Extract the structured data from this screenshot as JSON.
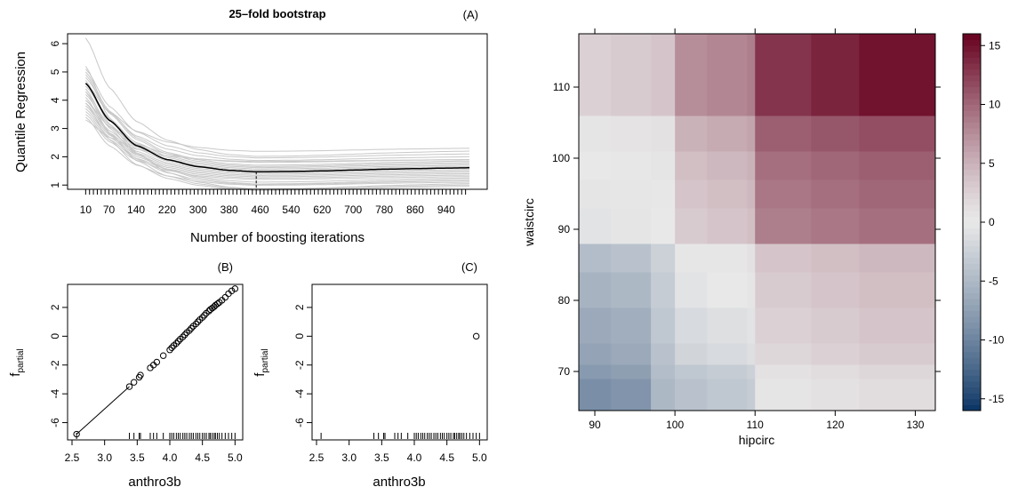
{
  "chart_data": [
    {
      "panel": "A",
      "type": "line",
      "panel_label": "(A)",
      "title": "25–fold bootstrap",
      "xlabel": "Number of boosting iterations",
      "ylabel": "Quantile Regression",
      "xlim": [
        0,
        1000
      ],
      "ylim": [
        0.85,
        6.35
      ],
      "x_tick_labels": [
        "10",
        "70",
        "140",
        "220",
        "300",
        "380",
        "460",
        "540",
        "620",
        "700",
        "780",
        "860",
        "940"
      ],
      "y_tick_labels": [
        "1",
        "2",
        "3",
        "4",
        "5",
        "6"
      ],
      "mean_curve": {
        "color": "#000000",
        "x": [
          10,
          70,
          140,
          220,
          300,
          380,
          450,
          540,
          620,
          700,
          780,
          860,
          940,
          1000
        ],
        "y": [
          4.6,
          3.3,
          2.4,
          1.9,
          1.65,
          1.52,
          1.47,
          1.48,
          1.5,
          1.53,
          1.56,
          1.58,
          1.6,
          1.61
        ]
      },
      "bootstrap_curves": {
        "color": "#c8c8c8",
        "count": 25,
        "start_values": [
          6.2,
          5.1,
          4.8,
          3.3,
          5.0,
          4.9,
          4.6,
          4.5,
          4.3,
          4.2,
          4.0,
          3.9,
          3.8,
          3.7,
          3.6,
          3.5,
          4.4,
          4.7,
          4.1,
          3.4,
          5.2,
          4.3,
          3.9,
          4.6,
          4.0
        ],
        "end_values": [
          2.2,
          2.1,
          2.0,
          1.9,
          1.85,
          1.8,
          1.75,
          1.7,
          1.65,
          1.6,
          1.55,
          1.5,
          1.45,
          1.4,
          1.35,
          1.3,
          1.25,
          1.2,
          1.15,
          1.1,
          1.05,
          1.0,
          0.95,
          2.3,
          1.9
        ]
      },
      "optimal_iteration": 450
    },
    {
      "panel": "B",
      "type": "scatter",
      "panel_label": "(B)",
      "xlabel": "anthro3b",
      "ylabel": "f",
      "ylabel_subscript": "partial",
      "xlim": [
        2.5,
        5.05
      ],
      "ylim": [
        -7.2,
        3.6
      ],
      "x_tick_labels": [
        "2.5",
        "3.0",
        "3.5",
        "4.0",
        "4.5",
        "5.0"
      ],
      "y_tick_labels": [
        "-6",
        "-4",
        "-2",
        "0",
        "2"
      ],
      "points": {
        "x": [
          2.57,
          3.38,
          3.45,
          3.53,
          3.55,
          3.7,
          3.75,
          3.8,
          3.9,
          4.0,
          4.03,
          4.06,
          4.1,
          4.13,
          4.16,
          4.2,
          4.23,
          4.26,
          4.3,
          4.33,
          4.36,
          4.4,
          4.43,
          4.46,
          4.5,
          4.53,
          4.56,
          4.6,
          4.62,
          4.65,
          4.68,
          4.7,
          4.73,
          4.76,
          4.8,
          4.85,
          4.9,
          4.95,
          5.0
        ],
        "y": [
          -6.8,
          -3.5,
          -3.2,
          -2.85,
          -2.7,
          -2.2,
          -2.0,
          -1.8,
          -1.35,
          -0.95,
          -0.8,
          -0.65,
          -0.5,
          -0.35,
          -0.2,
          -0.05,
          0.1,
          0.25,
          0.4,
          0.55,
          0.7,
          0.85,
          1.0,
          1.15,
          1.3,
          1.45,
          1.6,
          1.75,
          1.85,
          1.95,
          2.05,
          2.15,
          2.25,
          2.35,
          2.5,
          2.7,
          2.95,
          3.15,
          3.3
        ]
      },
      "rug": [
        2.57,
        3.38,
        3.45,
        3.53,
        3.55,
        3.7,
        3.75,
        3.8,
        3.9,
        4.0,
        4.03,
        4.06,
        4.1,
        4.13,
        4.16,
        4.2,
        4.23,
        4.26,
        4.3,
        4.33,
        4.36,
        4.4,
        4.43,
        4.46,
        4.5,
        4.53,
        4.56,
        4.6,
        4.62,
        4.65,
        4.68,
        4.7,
        4.73,
        4.76,
        4.8,
        4.85,
        4.9,
        4.95,
        5.0
      ]
    },
    {
      "panel": "C",
      "type": "scatter",
      "panel_label": "(C)",
      "xlabel": "anthro3b",
      "ylabel": "f",
      "ylabel_subscript": "partial",
      "xlim": [
        2.5,
        5.05
      ],
      "ylim": [
        -7.2,
        3.6
      ],
      "x_tick_labels": [
        "2.5",
        "3.0",
        "3.5",
        "4.0",
        "4.5",
        "5.0"
      ],
      "y_tick_labels": [
        "-6",
        "-4",
        "-2",
        "0",
        "2"
      ],
      "points": {
        "x": [
          4.95
        ],
        "y": [
          0.0
        ]
      },
      "rug": [
        2.57,
        3.38,
        3.45,
        3.53,
        3.55,
        3.7,
        3.75,
        3.8,
        3.9,
        4.0,
        4.03,
        4.06,
        4.1,
        4.13,
        4.16,
        4.2,
        4.23,
        4.26,
        4.3,
        4.33,
        4.36,
        4.4,
        4.43,
        4.46,
        4.5,
        4.53,
        4.56,
        4.6,
        4.62,
        4.65,
        4.68,
        4.7,
        4.73,
        4.76,
        4.8,
        4.85,
        4.9,
        4.95,
        5.0
      ]
    },
    {
      "panel": "heatmap",
      "type": "heatmap",
      "xlabel": "hipcirc",
      "ylabel": "waistcirc",
      "xlim": [
        88,
        132.5
      ],
      "ylim": [
        64.5,
        117.5
      ],
      "x_tick_labels": [
        "90",
        "100",
        "110",
        "120",
        "130"
      ],
      "y_tick_labels": [
        "70",
        "80",
        "90",
        "100",
        "110"
      ],
      "colorbar": {
        "range": [
          -16,
          16
        ],
        "tick_labels": [
          "-15",
          "-10",
          "-5",
          "0",
          "5",
          "10",
          "15"
        ],
        "low_color": "#053061",
        "mid_color": "#e8e8e8",
        "high_color": "#67001f"
      },
      "x_breaks": [
        88,
        92,
        97,
        100,
        104,
        109,
        110,
        117,
        123,
        132.5
      ],
      "y_breaks": [
        64.5,
        69,
        71,
        74,
        79,
        84,
        88,
        93,
        97,
        101,
        106,
        117.5
      ],
      "cells": [
        [
          -9,
          -8.5,
          -5,
          -4,
          -3.5,
          -3,
          0.5,
          1,
          1.5
        ],
        [
          -8,
          -7.5,
          -4.5,
          -3.5,
          -3,
          -2.5,
          1,
          1.5,
          2
        ],
        [
          -7,
          -6.5,
          -4,
          -2,
          -1.5,
          -1,
          2,
          2.5,
          3
        ],
        [
          -6.5,
          -6,
          -3.5,
          -1.5,
          -1,
          -0.5,
          2.5,
          3,
          3.5
        ],
        [
          -5.5,
          -5,
          -3,
          -0.5,
          0,
          0.5,
          3,
          3.5,
          4
        ],
        [
          -4.5,
          -4,
          -2.5,
          -0.2,
          0.3,
          1,
          3.5,
          4,
          4.5
        ],
        [
          -0.5,
          -0.3,
          0,
          3,
          3.5,
          4,
          8.5,
          9,
          9.5
        ],
        [
          -0.3,
          -0.2,
          0.2,
          3.5,
          4,
          4.5,
          9,
          9.5,
          10
        ],
        [
          0,
          0.2,
          0.5,
          4,
          4.5,
          5,
          9.5,
          10,
          10.5
        ],
        [
          0.5,
          0.8,
          1,
          5,
          5.5,
          6,
          10.5,
          11,
          11.5
        ],
        [
          2.5,
          3,
          3.5,
          7.5,
          8,
          8.5,
          13,
          14,
          15
        ]
      ]
    }
  ]
}
